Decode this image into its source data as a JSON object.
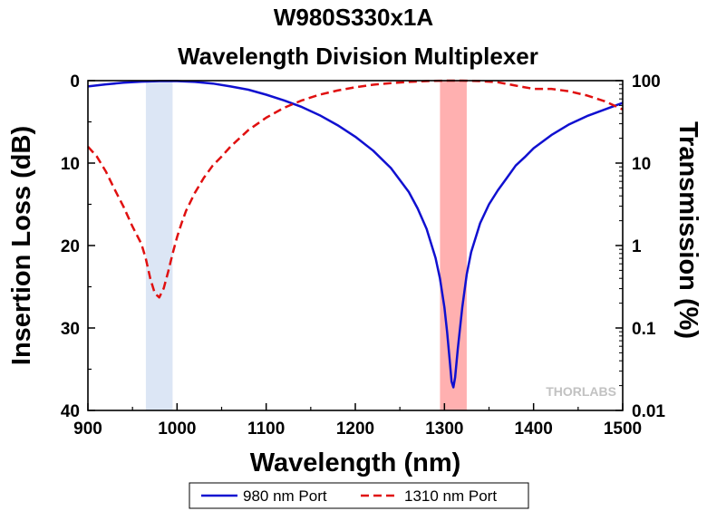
{
  "chart_data": {
    "type": "line",
    "title": [
      "W980S330x1A",
      "Wavelength Division Multiplexer"
    ],
    "xlabel": "Wavelength (nm)",
    "ylabel_left": "Insertion Loss (dB)",
    "ylabel_right": "Transmission (%)",
    "xlim": [
      900,
      1500
    ],
    "ylim_left": [
      0,
      40
    ],
    "ylim_right": [
      0.01,
      100
    ],
    "right_axis_scale": "log",
    "x_ticks": [
      900,
      1000,
      1100,
      1200,
      1300,
      1400,
      1500
    ],
    "y_ticks_left": [
      0,
      10,
      20,
      30,
      40
    ],
    "y_ticks_right": [
      "100",
      "10",
      "1",
      "0.1",
      "0.01"
    ],
    "grid": false,
    "legend_position": "bottom",
    "shaded_bands": [
      {
        "x": [
          965,
          995
        ],
        "color": "#dce6f5"
      },
      {
        "x": [
          1295,
          1325
        ],
        "color": "#ffb0b0"
      }
    ],
    "series": [
      {
        "name": "980 nm Port",
        "color": "#1010d0",
        "style": "solid",
        "x": [
          900,
          920,
          940,
          960,
          980,
          1000,
          1020,
          1040,
          1060,
          1080,
          1100,
          1120,
          1140,
          1160,
          1180,
          1200,
          1220,
          1240,
          1260,
          1270,
          1280,
          1290,
          1295,
          1300,
          1303,
          1306,
          1308,
          1310,
          1312,
          1315,
          1320,
          1325,
          1330,
          1340,
          1350,
          1360,
          1370,
          1380,
          1390,
          1400,
          1420,
          1440,
          1460,
          1480,
          1500
        ],
        "values": [
          0.7,
          0.45,
          0.25,
          0.12,
          0.05,
          0.05,
          0.15,
          0.35,
          0.7,
          1.1,
          1.7,
          2.4,
          3.2,
          4.2,
          5.4,
          6.8,
          8.5,
          10.6,
          13.5,
          15.5,
          18.0,
          21.5,
          24.0,
          27.5,
          30.5,
          34.0,
          36.5,
          37.2,
          36.0,
          32.5,
          27.5,
          23.5,
          20.8,
          17.3,
          15.0,
          13.3,
          11.8,
          10.3,
          9.3,
          8.2,
          6.6,
          5.3,
          4.3,
          3.5,
          2.7
        ]
      },
      {
        "name": "1310 nm Port",
        "color": "#e01010",
        "style": "dashed",
        "x": [
          900,
          910,
          920,
          930,
          940,
          950,
          960,
          965,
          970,
          975,
          980,
          985,
          990,
          995,
          1000,
          1005,
          1010,
          1020,
          1030,
          1040,
          1050,
          1060,
          1080,
          1100,
          1120,
          1140,
          1160,
          1180,
          1200,
          1220,
          1240,
          1260,
          1280,
          1300,
          1320,
          1340,
          1360,
          1380,
          1400,
          1420,
          1440,
          1460,
          1480,
          1500
        ],
        "values": [
          8.0,
          9.2,
          11.0,
          13.2,
          15.3,
          17.7,
          19.8,
          21.6,
          24.0,
          25.8,
          26.3,
          25.2,
          23.2,
          21.0,
          19.0,
          17.3,
          15.8,
          13.6,
          11.8,
          10.3,
          9.2,
          8.0,
          6.0,
          4.5,
          3.3,
          2.4,
          1.7,
          1.2,
          0.8,
          0.5,
          0.3,
          0.15,
          0.05,
          0.0,
          0.0,
          0.05,
          0.2,
          0.6,
          1.0,
          1.0,
          1.3,
          1.8,
          2.5,
          3.5
        ]
      }
    ]
  },
  "watermark": "THORLABS"
}
